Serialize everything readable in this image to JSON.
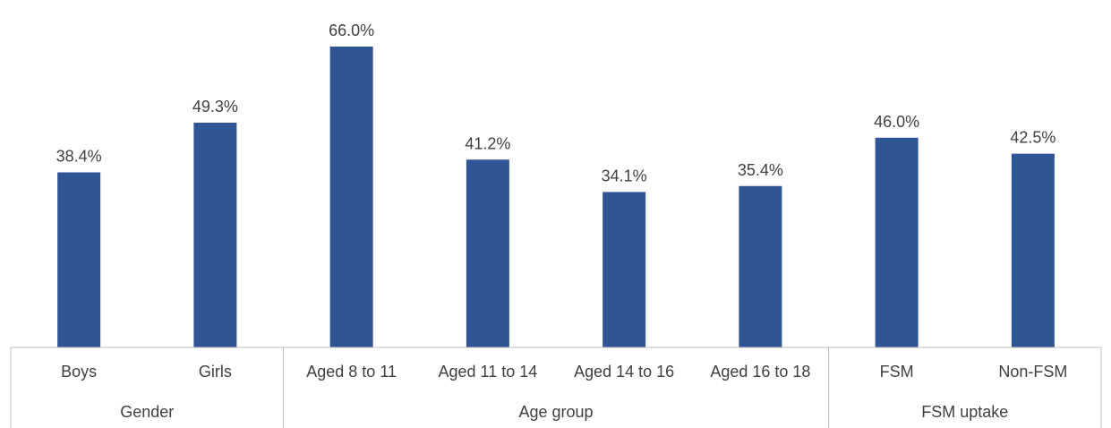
{
  "chart_data": {
    "type": "bar",
    "title": "",
    "xlabel": "",
    "ylabel": "",
    "ylim": [
      0,
      66.0
    ],
    "grid": false,
    "legend": "none",
    "bar_color": "#2F5597",
    "axis_color": "#BFBFBF",
    "text_color": "#404040",
    "categories": [
      "Boys",
      "Girls",
      "Aged 8 to 11",
      "Aged 11 to 14",
      "Aged 14 to 16",
      "Aged 16 to 18",
      "FSM",
      "Non-FSM"
    ],
    "values": [
      38.4,
      49.3,
      66.0,
      41.2,
      34.1,
      35.4,
      46.0,
      42.5
    ],
    "value_labels": [
      "38.4%",
      "49.3%",
      "66.0%",
      "41.2%",
      "34.1%",
      "35.4%",
      "46.0%",
      "42.5%"
    ],
    "groups": [
      {
        "label": "Gender",
        "categories": [
          "Boys",
          "Girls"
        ]
      },
      {
        "label": "Age group",
        "categories": [
          "Aged 8 to 11",
          "Aged 11 to 14",
          "Aged 14 to 16",
          "Aged 16 to 18"
        ]
      },
      {
        "label": "FSM uptake",
        "categories": [
          "FSM",
          "Non-FSM"
        ]
      }
    ]
  }
}
